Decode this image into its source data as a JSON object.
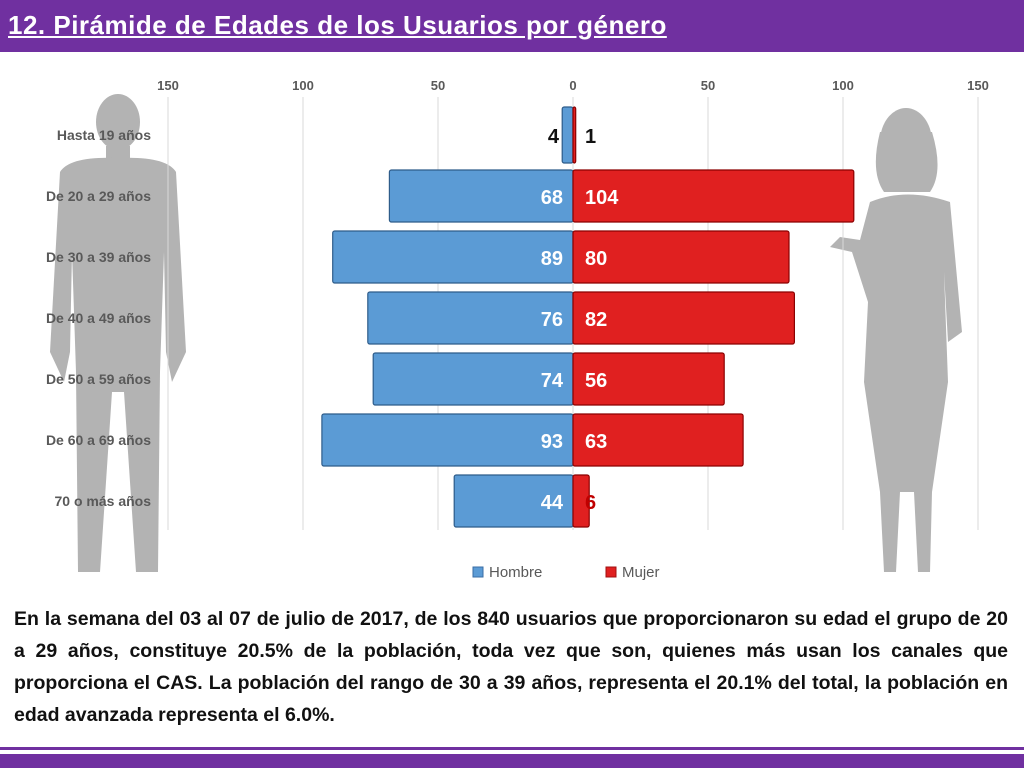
{
  "title": "12. Pirámide de Edades de los Usuarios por género",
  "colors": {
    "header": "#7030a0",
    "hombre": "#5b9bd5",
    "mujer": "#e02020",
    "silhouette": "#a6a6a6"
  },
  "icons": {
    "left": "man-silhouette-icon",
    "right": "woman-silhouette-icon"
  },
  "chart_data": {
    "type": "bar",
    "orientation": "horizontal-pyramid",
    "categories": [
      "Hasta 19 años",
      "De 20 a 29 años",
      "De 30 a 39 años",
      "De 40 a 49 años",
      "De 50 a 59 años",
      "De 60 a 69 años",
      "70 o más años"
    ],
    "series": [
      {
        "name": "Hombre",
        "values": [
          4,
          68,
          89,
          76,
          74,
          93,
          44
        ],
        "color": "#5b9bd5"
      },
      {
        "name": "Mujer",
        "values": [
          1,
          104,
          80,
          82,
          56,
          63,
          6
        ],
        "color": "#e02020"
      }
    ],
    "xticks": [
      "150",
      "100",
      "50",
      "0",
      "50",
      "100",
      "150"
    ],
    "xlim": [
      -150,
      150
    ],
    "grid": true,
    "legend": "bottom"
  },
  "description": "En la semana del 03 al 07 de julio de 2017, de los 840 usuarios que proporcionaron su edad el grupo de 20 a 29 años, constituye 20.5% de la población, toda vez que son, quienes más usan los canales que proporciona el CAS. La población del rango de 30 a 39 años, representa el 20.1% del total, la población en edad avanzada representa el 6.0%."
}
